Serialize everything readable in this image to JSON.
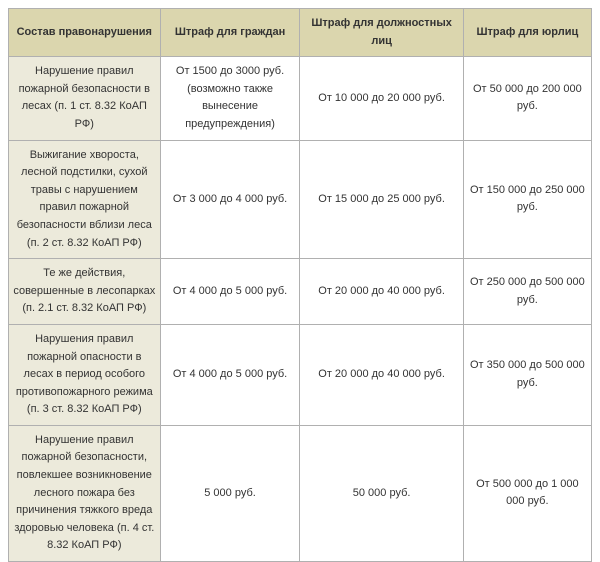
{
  "table": {
    "header_bg": "#dbd6ae",
    "row_label_bg": "#eceadb",
    "cell_bg": "#ffffff",
    "border_color": "#b0b0b0",
    "text_color": "#333333",
    "columns": [
      "Состав правонарушения",
      "Штраф для граждан",
      "Штраф для должностных лиц",
      "Штраф для юрлиц"
    ],
    "rows": [
      {
        "label": "Нарушение правил пожарной безопасности в лесах (п. 1 ст. 8.32 КоАП РФ)",
        "citizens": "От 1500 до 3000 руб. (возможно также вынесение предупреждения)",
        "officials": "От 10 000 до 20 000 руб.",
        "legal": "От 50 000 до 200 000 руб."
      },
      {
        "label": "Выжигание хвороста, лесной подстилки, сухой травы с нарушением правил пожарной безопасности вблизи леса (п. 2 ст. 8.32 КоАП РФ)",
        "citizens": "От 3 000 до 4 000 руб.",
        "officials": "От 15 000 до 25 000 руб.",
        "legal": "От 150 000 до 250 000 руб."
      },
      {
        "label": "Те же действия, совершенные в лесопарках (п. 2.1 ст. 8.32 КоАП РФ)",
        "citizens": "От 4 000 до 5 000 руб.",
        "officials": "От 20 000 до 40 000 руб.",
        "legal": "От 250 000 до 500 000 руб."
      },
      {
        "label": "Нарушения правил пожарной опасности в лесах в период особого противопожарного режима (п. 3 ст. 8.32 КоАП РФ)",
        "citizens": "От 4 000 до 5 000 руб.",
        "officials": "От 20 000 до 40 000 руб.",
        "legal": "От 350 000 до 500 000 руб."
      },
      {
        "label": "Нарушение правил пожарной безопасности, повлекшее возникновение лесного пожара без причинения тяжкого вреда здоровью человека (п. 4 ст. 8.32 КоАП РФ)",
        "citizens": "5 000 руб.",
        "officials": "50 000 руб.",
        "legal": "От 500 000 до 1 000 000 руб."
      }
    ]
  }
}
